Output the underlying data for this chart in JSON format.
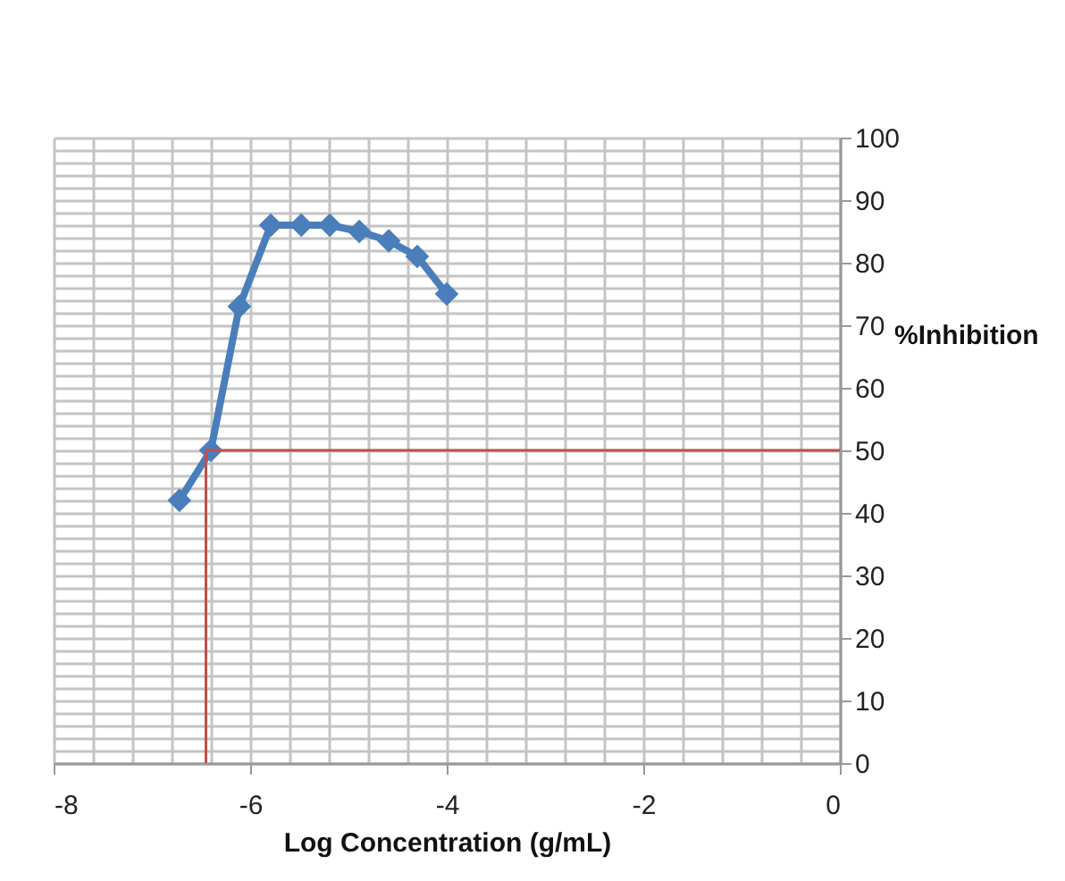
{
  "chart_data": {
    "type": "line",
    "xlabel": "Log Concentration (g/mL)",
    "ylabel": "%Inhibition",
    "x": [
      -6.72,
      -6.4,
      -6.11,
      -5.79,
      -5.48,
      -5.19,
      -4.89,
      -4.59,
      -4.3,
      -4.0
    ],
    "series": [
      {
        "color": "#4a7ebb",
        "values": [
          42,
          50,
          73,
          86,
          86,
          86,
          85,
          83.5,
          81,
          75
        ]
      }
    ],
    "xlim": [
      -8,
      0
    ],
    "ylim": [
      0,
      100
    ],
    "xticks": [
      -8,
      {
        "value": -7.6,
        "label": null
      },
      {
        "value": -7.2,
        "label": null
      },
      {
        "value": -6.8,
        "label": null
      },
      {
        "value": -6.4,
        "label": null
      },
      -6,
      {
        "value": -5.6,
        "label": null
      },
      {
        "value": -5.2,
        "label": null
      },
      {
        "value": -4.8,
        "label": null
      },
      {
        "value": -4.4,
        "label": null
      },
      -4,
      {
        "value": -3.6,
        "label": null
      },
      {
        "value": -3.2,
        "label": null
      },
      {
        "value": -2.8,
        "label": null
      },
      {
        "value": -2.4,
        "label": null
      },
      -2,
      {
        "value": -1.6,
        "label": null
      },
      {
        "value": -1.2,
        "label": null
      },
      {
        "value": -0.8,
        "label": null
      },
      {
        "value": -0.4,
        "label": null
      },
      0
    ],
    "yticks": [
      0,
      {
        "value": 2,
        "label": null
      },
      {
        "value": 4,
        "label": null
      },
      {
        "value": 6,
        "label": null
      },
      {
        "value": 8,
        "label": null
      },
      10,
      {
        "value": 12,
        "label": null
      },
      {
        "value": 14,
        "label": null
      },
      {
        "value": 16,
        "label": null
      },
      {
        "value": 18,
        "label": null
      },
      20,
      {
        "value": 22,
        "label": null
      },
      {
        "value": 24,
        "label": null
      },
      {
        "value": 26,
        "label": null
      },
      {
        "value": 28,
        "label": null
      },
      30,
      {
        "value": 32,
        "label": null
      },
      {
        "value": 34,
        "label": null
      },
      {
        "value": 36,
        "label": null
      },
      {
        "value": 38,
        "label": null
      },
      40,
      {
        "value": 42,
        "label": null
      },
      {
        "value": 44,
        "label": null
      },
      {
        "value": 46,
        "label": null
      },
      {
        "value": 48,
        "label": null
      },
      50,
      {
        "value": 52,
        "label": null
      },
      {
        "value": 54,
        "label": null
      },
      {
        "value": 56,
        "label": null
      },
      {
        "value": 58,
        "label": null
      },
      60,
      {
        "value": 62,
        "label": null
      },
      {
        "value": 64,
        "label": null
      },
      {
        "value": 66,
        "label": null
      },
      {
        "value": 68,
        "label": null
      },
      70,
      {
        "value": 72,
        "label": null
      },
      {
        "value": 74,
        "label": null
      },
      {
        "value": 76,
        "label": null
      },
      {
        "value": 78,
        "label": null
      },
      80,
      {
        "value": 82,
        "label": null
      },
      {
        "value": 84,
        "label": null
      },
      {
        "value": 86,
        "label": null
      },
      {
        "value": 88,
        "label": null
      },
      90,
      {
        "value": 92,
        "label": null
      },
      {
        "value": 94,
        "label": null
      },
      {
        "value": 96,
        "label": null
      },
      {
        "value": 98,
        "label": null
      },
      100
    ],
    "grid": true,
    "marker": "diamond",
    "line_style": "solid",
    "ref_lines": [
      {
        "axis": "y",
        "value": 50,
        "color": "#c0504d"
      },
      {
        "axis": "x",
        "value": -6.45,
        "color": "#c0504d"
      }
    ]
  }
}
